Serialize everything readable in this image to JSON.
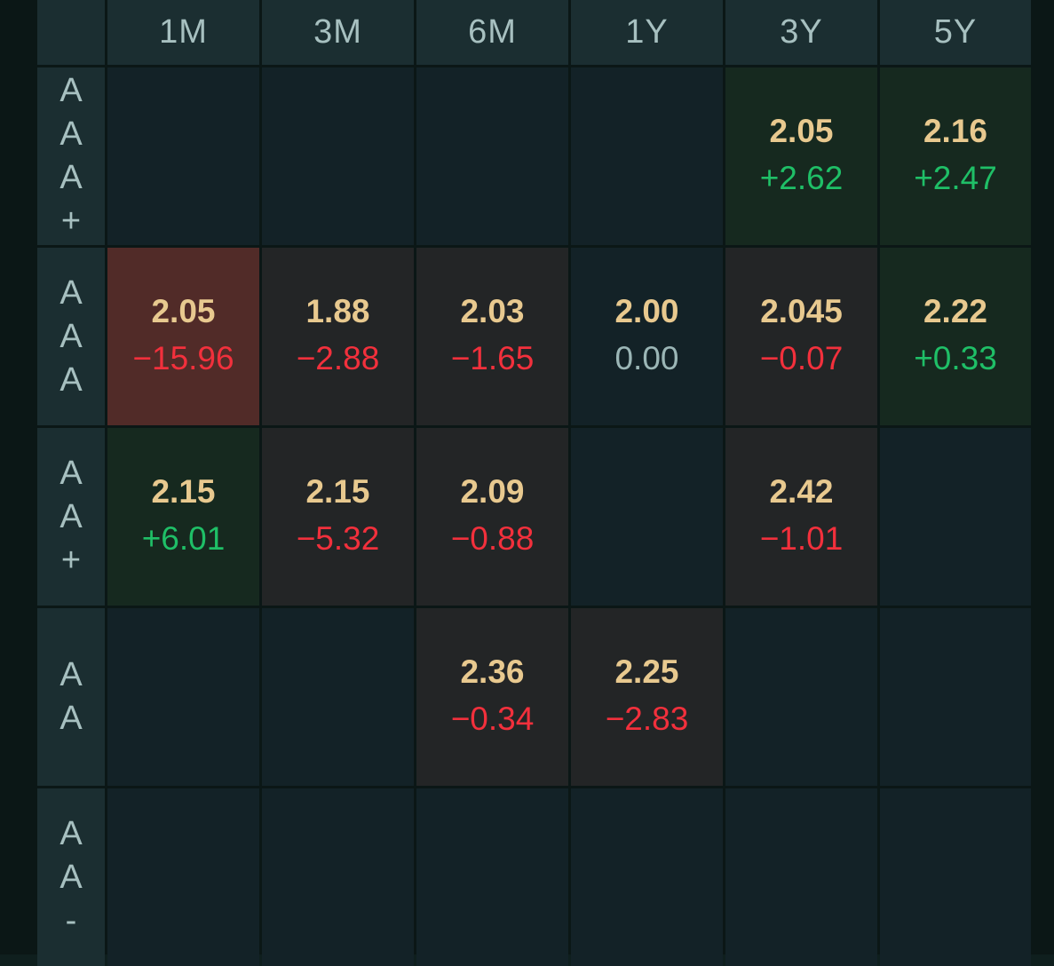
{
  "columns": [
    "1M",
    "3M",
    "6M",
    "1Y",
    "3Y",
    "5Y"
  ],
  "rows": [
    {
      "label_chars": [
        "A",
        "A",
        "A",
        "+"
      ],
      "cells": [
        null,
        null,
        null,
        null,
        {
          "rate": "2.05",
          "change": "+2.62",
          "dir": "up"
        },
        {
          "rate": "2.16",
          "change": "+2.47",
          "dir": "up"
        }
      ]
    },
    {
      "label_chars": [
        "A",
        "A",
        "A"
      ],
      "cells": [
        {
          "rate": "2.05",
          "change": "−15.96",
          "dir": "down-strong"
        },
        {
          "rate": "1.88",
          "change": "−2.88",
          "dir": "down"
        },
        {
          "rate": "2.03",
          "change": "−1.65",
          "dir": "down"
        },
        {
          "rate": "2.00",
          "change": "0.00",
          "dir": "flat"
        },
        {
          "rate": "2.045",
          "change": "−0.07",
          "dir": "down"
        },
        {
          "rate": "2.22",
          "change": "+0.33",
          "dir": "up"
        }
      ]
    },
    {
      "label_chars": [
        "A",
        "A",
        "+"
      ],
      "cells": [
        {
          "rate": "2.15",
          "change": "+6.01",
          "dir": "up"
        },
        {
          "rate": "2.15",
          "change": "−5.32",
          "dir": "down"
        },
        {
          "rate": "2.09",
          "change": "−0.88",
          "dir": "down"
        },
        null,
        {
          "rate": "2.42",
          "change": "−1.01",
          "dir": "down"
        },
        null
      ]
    },
    {
      "label_chars": [
        "A",
        "A"
      ],
      "cells": [
        null,
        null,
        {
          "rate": "2.36",
          "change": "−0.34",
          "dir": "down"
        },
        {
          "rate": "2.25",
          "change": "−2.83",
          "dir": "down"
        },
        null,
        null
      ]
    },
    {
      "label_chars": [
        "A",
        "A",
        "-"
      ],
      "cells": [
        null,
        null,
        null,
        null,
        null,
        null
      ]
    }
  ],
  "colors": {
    "positive": "#1fbf67",
    "negative": "#f2303c",
    "rate": "#e8c98f",
    "header_text": "#a7c0c0"
  }
}
